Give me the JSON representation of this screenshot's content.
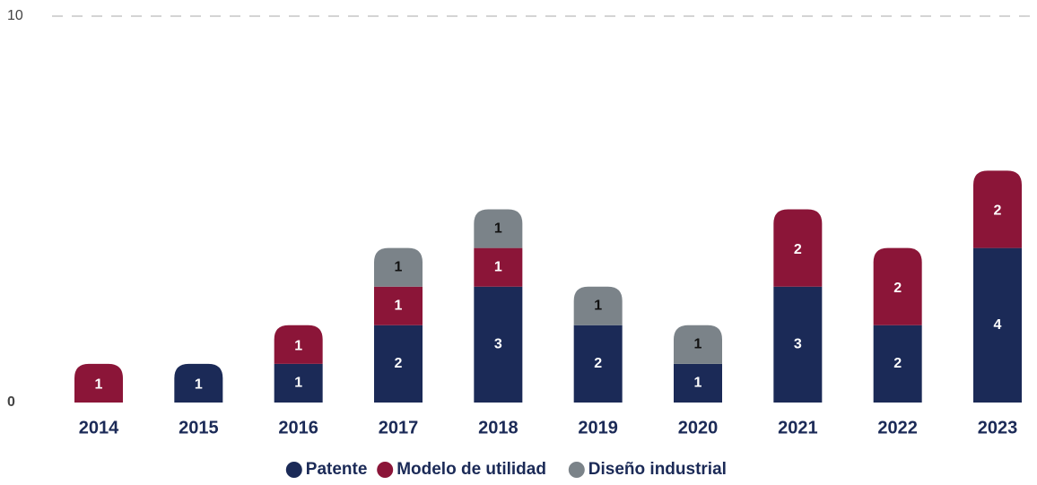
{
  "chart_data": {
    "type": "stacked_bar",
    "categories": [
      "2014",
      "2015",
      "2016",
      "2017",
      "2018",
      "2019",
      "2020",
      "2021",
      "2022",
      "2023"
    ],
    "series": [
      {
        "name": "Patente",
        "color": "#1b2a57",
        "values": [
          0,
          1,
          1,
          2,
          3,
          2,
          1,
          3,
          2,
          4
        ]
      },
      {
        "name": "Modelo de utilidad",
        "color": "#8b1538",
        "values": [
          1,
          0,
          1,
          1,
          1,
          0,
          0,
          2,
          2,
          2
        ]
      },
      {
        "name": "Diseño industrial",
        "color": "#7b8389",
        "values": [
          0,
          0,
          0,
          1,
          1,
          1,
          1,
          0,
          0,
          0
        ]
      }
    ],
    "ylim": [
      0,
      10
    ],
    "yticks": [
      0,
      10
    ],
    "grid": true,
    "legend": "bottom"
  }
}
